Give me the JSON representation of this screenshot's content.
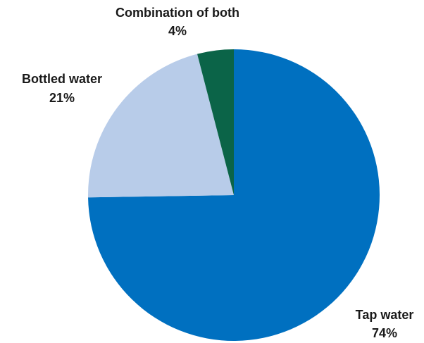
{
  "chart_data": {
    "type": "pie",
    "title": "",
    "slices": [
      {
        "name": "Tap water",
        "value": 74,
        "value_label": "74%",
        "color": "#0070c0"
      },
      {
        "name": "Bottled water",
        "value": 21,
        "value_label": "21%",
        "color": "#b8cce9"
      },
      {
        "name": "Combination of both",
        "value": 4,
        "value_label": "4%",
        "color": "#0b6448"
      }
    ],
    "start_angle": "12 o'clock",
    "direction": "clockwise",
    "legend": "none",
    "labels": "outside slices"
  }
}
